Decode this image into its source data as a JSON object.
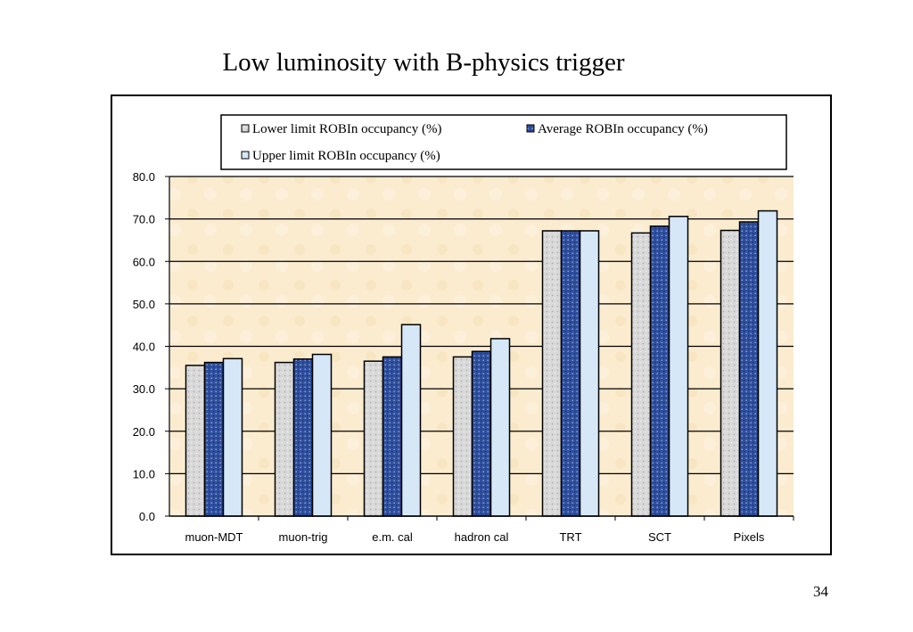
{
  "slide": {
    "title": "Low luminosity with B-physics trigger",
    "page_number": "34"
  },
  "colors": {
    "lower": "#d9d9d9",
    "average": "#2f4f9e",
    "upper": "#d6e7f8",
    "plot_bg": "#fbecd0",
    "grid": "#000000"
  },
  "chart_data": {
    "type": "bar",
    "title": "Low luminosity with B-physics trigger",
    "xlabel": "",
    "ylabel": "",
    "categories": [
      "muon-MDT",
      "muon-trig",
      "e.m. cal",
      "hadron cal",
      "TRT",
      "SCT",
      "Pixels"
    ],
    "series": [
      {
        "name": "Lower limit ROBIn occupancy (%)",
        "values": [
          35.5,
          36.2,
          36.5,
          37.5,
          67.2,
          66.7,
          67.3
        ]
      },
      {
        "name": "Average ROBIn occupancy (%)",
        "values": [
          36.2,
          37.0,
          37.5,
          38.8,
          67.2,
          68.3,
          69.3
        ]
      },
      {
        "name": "Upper limit ROBIn occupancy (%)",
        "values": [
          37.1,
          38.1,
          45.1,
          41.8,
          67.2,
          70.6,
          71.9
        ]
      }
    ],
    "ylim": [
      0,
      80
    ],
    "yticks": [
      "0.0",
      "10.0",
      "20.0",
      "30.0",
      "40.0",
      "50.0",
      "60.0",
      "70.0",
      "80.0"
    ],
    "grid": true,
    "legend_position": "top"
  }
}
